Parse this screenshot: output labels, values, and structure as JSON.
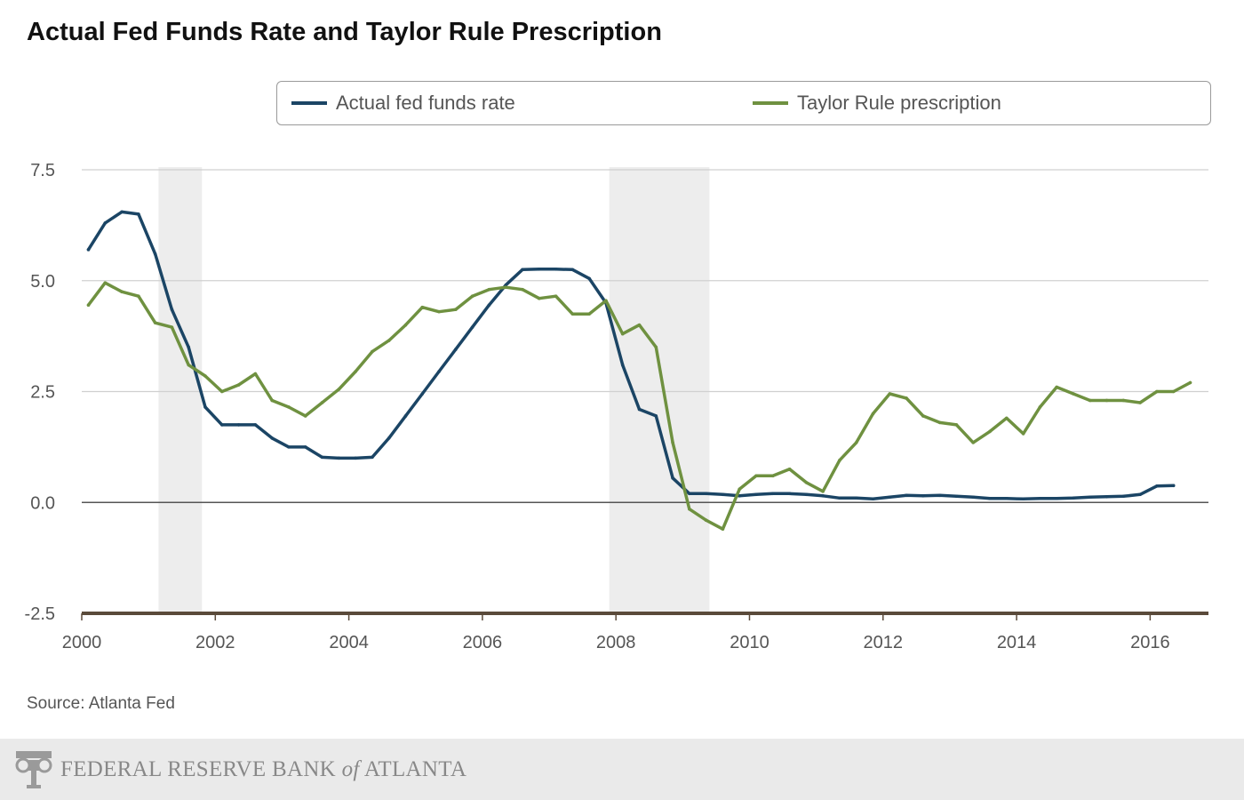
{
  "title": "Actual Fed Funds Rate and Taylor Rule Prescription",
  "source": "Source: Atlanta Fed",
  "footer": {
    "org_main": "FEDERAL RESERVE BANK",
    "org_of": "of",
    "org_place": "ATLANTA",
    "logo_icon": "fed-logo-icon"
  },
  "colors": {
    "actual": "#1b4565",
    "taylor": "#6f9140",
    "recession": "#ededed",
    "grid": "#d0d0d0",
    "zero": "#555555",
    "axis": "#5a4a3a",
    "tick": "#555555"
  },
  "chart_data": {
    "type": "line",
    "title": "Actual Fed Funds Rate and Taylor Rule Prescription",
    "xlabel": "",
    "ylabel": "",
    "xlim": [
      2000,
      2016.9
    ],
    "ylim": [
      -2.5,
      7.5
    ],
    "x_ticks": [
      2000,
      2002,
      2004,
      2006,
      2008,
      2010,
      2012,
      2014,
      2016
    ],
    "x_tick_labels": [
      "2000",
      "2002",
      "2004",
      "2006",
      "2008",
      "2010",
      "2012",
      "2014",
      "2016"
    ],
    "y_ticks": [
      7.5,
      5.0,
      2.5,
      0.0,
      -2.5
    ],
    "y_tick_labels": [
      "7.5",
      "5.0",
      "2.5",
      "0.0",
      "-2.5"
    ],
    "grid": true,
    "legend_position": "top",
    "recessions": [
      [
        2001.15,
        2001.8
      ],
      [
        2007.9,
        2009.4
      ]
    ],
    "series": [
      {
        "name": "Actual fed funds rate",
        "x": [
          2000.1,
          2000.35,
          2000.6,
          2000.85,
          2001.1,
          2001.35,
          2001.6,
          2001.85,
          2002.1,
          2002.35,
          2002.6,
          2002.85,
          2003.1,
          2003.35,
          2003.6,
          2003.85,
          2004.1,
          2004.35,
          2004.6,
          2004.85,
          2005.1,
          2005.35,
          2005.6,
          2005.85,
          2006.1,
          2006.35,
          2006.6,
          2006.85,
          2007.1,
          2007.35,
          2007.6,
          2007.85,
          2008.1,
          2008.35,
          2008.6,
          2008.85,
          2009.1,
          2009.35,
          2009.6,
          2009.85,
          2010.1,
          2010.35,
          2010.6,
          2010.85,
          2011.1,
          2011.35,
          2011.6,
          2011.85,
          2012.1,
          2012.35,
          2012.6,
          2012.85,
          2013.1,
          2013.35,
          2013.6,
          2013.85,
          2014.1,
          2014.35,
          2014.6,
          2014.85,
          2015.1,
          2015.35,
          2015.6,
          2015.85,
          2016.1,
          2016.35
        ],
        "values": [
          5.7,
          6.3,
          6.55,
          6.5,
          5.6,
          4.35,
          3.5,
          2.15,
          1.75,
          1.75,
          1.75,
          1.45,
          1.25,
          1.25,
          1.02,
          1.0,
          1.0,
          1.02,
          1.45,
          1.95,
          2.45,
          2.95,
          3.45,
          3.95,
          4.45,
          4.9,
          5.25,
          5.26,
          5.26,
          5.25,
          5.05,
          4.5,
          3.1,
          2.1,
          1.95,
          0.55,
          0.2,
          0.2,
          0.18,
          0.15,
          0.18,
          0.2,
          0.2,
          0.18,
          0.15,
          0.1,
          0.1,
          0.08,
          0.12,
          0.16,
          0.15,
          0.16,
          0.14,
          0.12,
          0.09,
          0.09,
          0.08,
          0.09,
          0.09,
          0.1,
          0.12,
          0.13,
          0.14,
          0.18,
          0.37,
          0.38
        ]
      },
      {
        "name": "Taylor Rule prescription",
        "x": [
          2000.1,
          2000.35,
          2000.6,
          2000.85,
          2001.1,
          2001.35,
          2001.6,
          2001.85,
          2002.1,
          2002.35,
          2002.6,
          2002.85,
          2003.1,
          2003.35,
          2003.6,
          2003.85,
          2004.1,
          2004.35,
          2004.6,
          2004.85,
          2005.1,
          2005.35,
          2005.6,
          2005.85,
          2006.1,
          2006.35,
          2006.6,
          2006.85,
          2007.1,
          2007.35,
          2007.6,
          2007.85,
          2008.1,
          2008.35,
          2008.6,
          2008.85,
          2009.1,
          2009.35,
          2009.6,
          2009.85,
          2010.1,
          2010.35,
          2010.6,
          2010.85,
          2011.1,
          2011.35,
          2011.6,
          2011.85,
          2012.1,
          2012.35,
          2012.6,
          2012.85,
          2013.1,
          2013.35,
          2013.6,
          2013.85,
          2014.1,
          2014.35,
          2014.6,
          2014.85,
          2015.1,
          2015.35,
          2015.6,
          2015.85,
          2016.1,
          2016.35,
          2016.6
        ],
        "values": [
          4.45,
          4.95,
          4.75,
          4.65,
          4.05,
          3.95,
          3.1,
          2.85,
          2.5,
          2.65,
          2.9,
          2.3,
          2.15,
          1.95,
          2.25,
          2.55,
          2.95,
          3.4,
          3.65,
          4.0,
          4.4,
          4.3,
          4.35,
          4.65,
          4.8,
          4.85,
          4.8,
          4.6,
          4.65,
          4.25,
          4.25,
          4.55,
          3.8,
          4.0,
          3.5,
          1.35,
          -0.15,
          -0.4,
          -0.6,
          0.3,
          0.6,
          0.6,
          0.75,
          0.45,
          0.25,
          0.95,
          1.35,
          2.0,
          2.45,
          2.35,
          1.95,
          1.8,
          1.75,
          1.35,
          1.6,
          1.9,
          1.55,
          2.15,
          2.6,
          2.45,
          2.3,
          2.3,
          2.3,
          2.25,
          2.5,
          2.5,
          2.7
        ]
      }
    ]
  }
}
